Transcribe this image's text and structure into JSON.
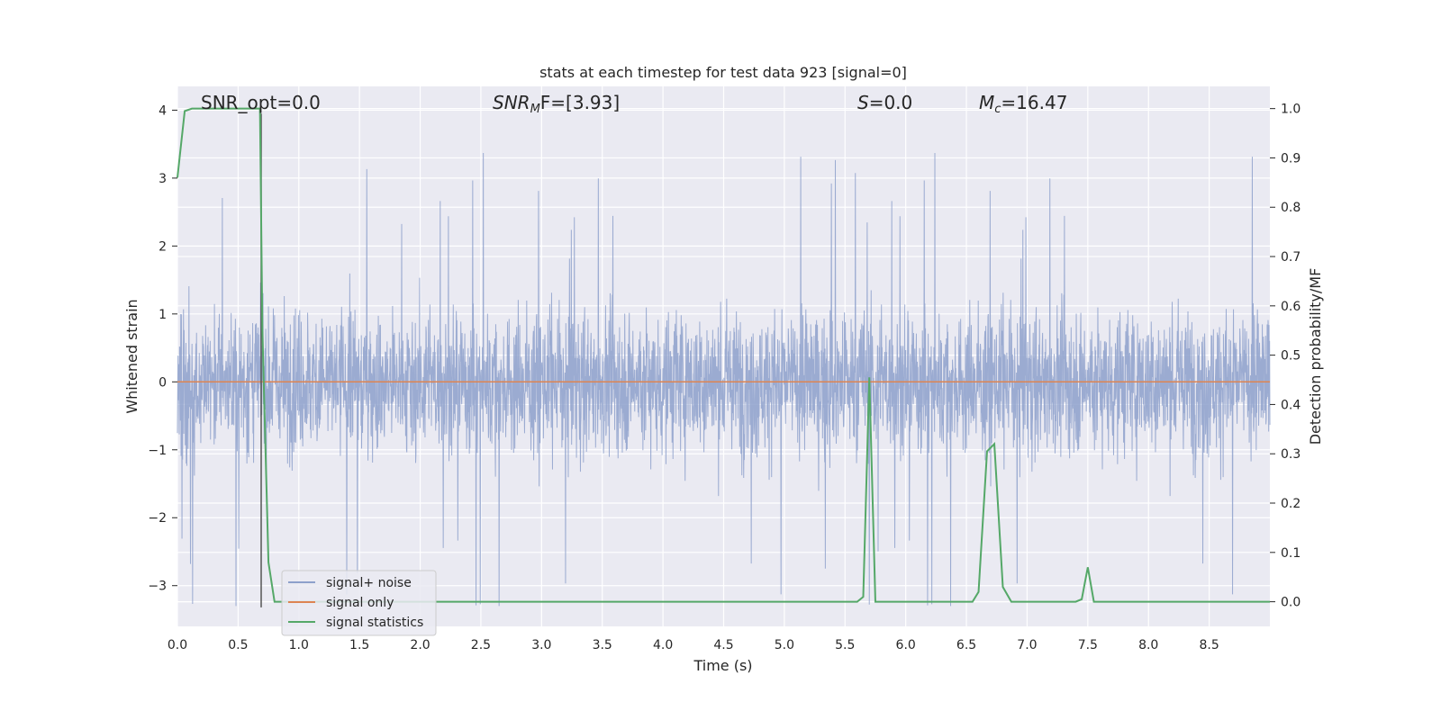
{
  "chart_data": {
    "type": "line",
    "title": "stats at each timestep for test data 923 [signal=0]",
    "xlabel": "Time (s)",
    "ylabel": "Whitened strain",
    "ylabel_right": "Detection probability/MF",
    "xlim": [
      0.0,
      9.0
    ],
    "ylim": [
      -3.6,
      4.35
    ],
    "ylim_right": [
      -0.05,
      1.045
    ],
    "x_ticks": [
      "0.0",
      "0.5",
      "1.0",
      "1.5",
      "2.0",
      "2.5",
      "3.0",
      "3.5",
      "4.0",
      "4.5",
      "5.0",
      "5.5",
      "6.0",
      "6.5",
      "7.0",
      "7.5",
      "8.0",
      "8.5"
    ],
    "y_ticks": [
      "4",
      "3",
      "2",
      "1",
      "0",
      "−1",
      "−2",
      "−3"
    ],
    "y_right_ticks": [
      "1.0",
      "0.9",
      "0.8",
      "0.7",
      "0.6",
      "0.5",
      "0.4",
      "0.3",
      "0.2",
      "0.1",
      "0.0"
    ],
    "grid": true,
    "legend_position": "lower-left",
    "annotations": {
      "snr_opt": "SNR_opt=0.0",
      "snr_mf_sym": "SNR",
      "snr_mf_sub": "M",
      "snr_mf_rest": "F=[3.93]",
      "s_sym": "S",
      "s_rest": "=0.0",
      "mc_sym": "M",
      "mc_sub": "c",
      "mc_rest": "=16.47"
    },
    "vertical_marker_x": 0.69,
    "series": [
      {
        "name": "signal+ noise",
        "color": "#8da0cb",
        "axis": "left",
        "style": "dense noise, roughly ±1.8 band with spikes up to ~4.0 and down to ~-3.3"
      },
      {
        "name": "signal only",
        "color": "#dd8452",
        "axis": "left",
        "x": [
          0.0,
          9.0
        ],
        "y": [
          0.0,
          0.0
        ]
      },
      {
        "name": "signal statistics",
        "color": "#55a868",
        "axis": "right",
        "x": [
          0.0,
          0.06,
          0.12,
          0.5,
          0.68,
          0.7,
          0.75,
          0.8,
          1.0,
          5.5,
          5.6,
          5.65,
          5.7,
          5.75,
          5.8,
          6.35,
          6.55,
          6.6,
          6.67,
          6.73,
          6.8,
          6.87,
          7.0,
          7.4,
          7.45,
          7.5,
          7.55,
          7.6,
          9.0
        ],
        "y": [
          0.86,
          0.995,
          1.0,
          1.0,
          1.0,
          0.55,
          0.08,
          0.0,
          0.0,
          0.0,
          0.0,
          0.01,
          0.455,
          0.0,
          0.0,
          0.0,
          0.0,
          0.02,
          0.305,
          0.32,
          0.03,
          0.0,
          0.0,
          0.0,
          0.005,
          0.07,
          0.0,
          0.0,
          0.0
        ]
      }
    ]
  }
}
